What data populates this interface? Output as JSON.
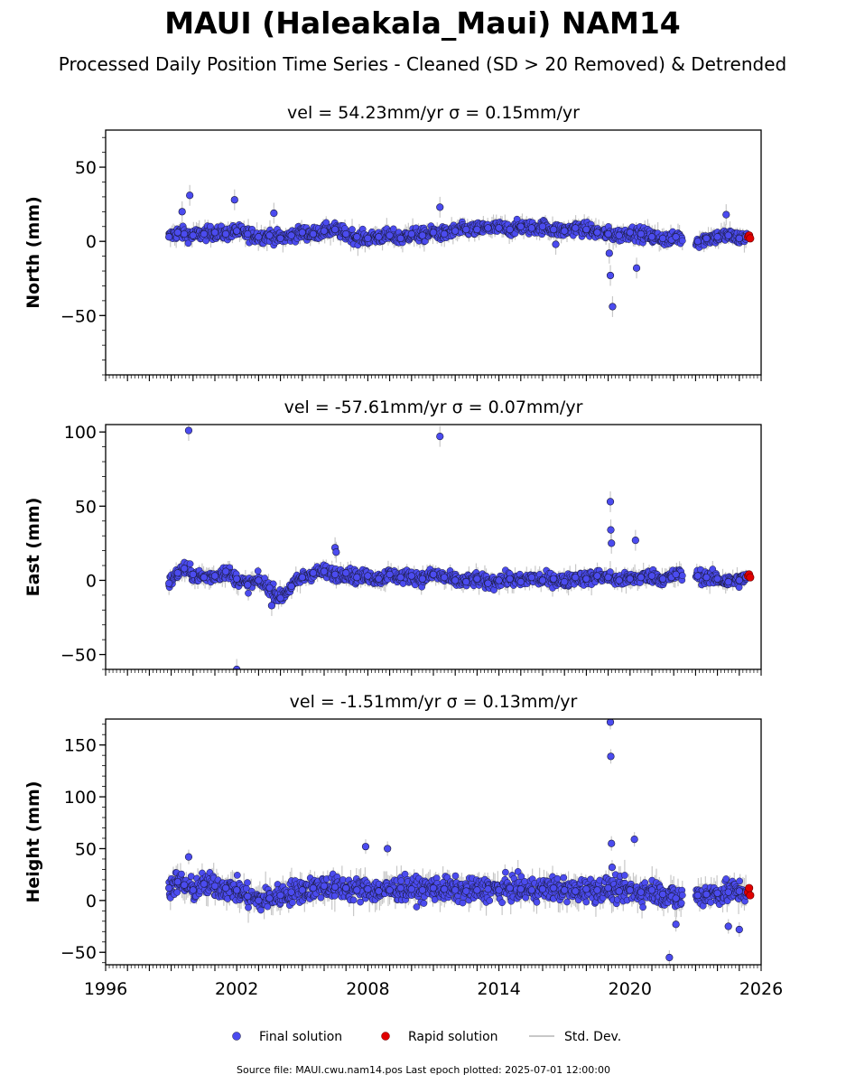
{
  "figure": {
    "title": "MAUI (Haleakala_Maui) NAM14",
    "subtitle": "Processed Daily Position Time Series - Cleaned (SD > 20 Removed) & Detrended",
    "footer": "Source file: MAUI.cwu.nam14.pos  Last epoch plotted: 2025-07-01 12:00:00"
  },
  "legend": {
    "final": "Final solution",
    "rapid": "Rapid solution",
    "std": "Std. Dev."
  },
  "colors": {
    "final": "#4b4bef",
    "rapid": "#e00000",
    "std": "#c8c8c8",
    "edge": "#1a1a3a"
  },
  "chart_data": [
    {
      "type": "scatter",
      "title": "vel = 54.23mm/yr   σ = 0.15mm/yr",
      "xlabel": "",
      "ylabel": "North (mm)",
      "xlim": [
        1996,
        2026
      ],
      "ylim": [
        -90,
        75
      ],
      "yticks": [
        -50,
        0,
        50
      ],
      "xticks": [
        1996,
        2002,
        2008,
        2014,
        2020,
        2026
      ],
      "series": [
        {
          "name": "Final solution",
          "x": [
            1998.9,
            1999.3,
            1999.6,
            2000.0,
            2000.5,
            2001.0,
            2001.5,
            2002.0,
            2002.5,
            2003.0,
            2003.5,
            2004.0,
            2004.5,
            2005.0,
            2005.5,
            2006.0,
            2006.5,
            2007.0,
            2007.5,
            2008.0,
            2008.5,
            2009.0,
            2009.5,
            2010.0,
            2010.5,
            2011.0,
            2011.5,
            2012.0,
            2012.5,
            2013.0,
            2013.5,
            2014.0,
            2014.5,
            2015.0,
            2015.5,
            2016.0,
            2016.5,
            2017.0,
            2017.5,
            2018.0,
            2018.5,
            2019.0,
            2019.5,
            2020.0,
            2020.5,
            2021.0,
            2021.5,
            2021.9,
            2022.1,
            2023.1,
            2023.5,
            2024.0,
            2024.5,
            2025.0,
            2025.3,
            1999.5,
            1999.85,
            2001.9,
            2003.7,
            2011.3,
            2019.05,
            2019.1,
            2019.2,
            2020.3,
            2016.6,
            2024.4
          ],
          "y": [
            3,
            6,
            5,
            4,
            5,
            6,
            5,
            7,
            5,
            3,
            4,
            2,
            4,
            6,
            5,
            7,
            8,
            5,
            3,
            2,
            3,
            4,
            2,
            5,
            4,
            6,
            5,
            7,
            8,
            8,
            9,
            9,
            8,
            10,
            9,
            10,
            8,
            7,
            9,
            8,
            6,
            5,
            4,
            6,
            5,
            3,
            2,
            1,
            3,
            0,
            2,
            3,
            4,
            2,
            3,
            20,
            31,
            28,
            19,
            23,
            -8,
            -23,
            -44,
            -18,
            -2,
            18
          ]
        },
        {
          "name": "Rapid solution",
          "x": [
            2025.4,
            2025.45,
            2025.5
          ],
          "y": [
            3,
            4,
            2
          ]
        }
      ]
    },
    {
      "type": "scatter",
      "title": "vel = -57.61mm/yr   σ = 0.07mm/yr",
      "xlabel": "",
      "ylabel": "East (mm)",
      "xlim": [
        1996,
        2026
      ],
      "ylim": [
        -60,
        105
      ],
      "yticks": [
        -50,
        0,
        50,
        100
      ],
      "xticks": [
        1996,
        2002,
        2008,
        2014,
        2020,
        2026
      ],
      "series": [
        {
          "name": "Final solution",
          "x": [
            1998.9,
            1999.3,
            1999.6,
            2000.0,
            2000.5,
            2001.0,
            2001.5,
            2002.0,
            2002.5,
            2003.0,
            2003.5,
            2004.0,
            2004.5,
            2005.0,
            2005.5,
            2006.0,
            2006.5,
            2007.0,
            2007.5,
            2008.0,
            2008.5,
            2009.0,
            2009.5,
            2010.0,
            2010.5,
            2011.0,
            2011.5,
            2012.0,
            2012.5,
            2013.0,
            2013.5,
            2014.0,
            2014.5,
            2015.0,
            2015.5,
            2016.0,
            2016.5,
            2017.0,
            2017.5,
            2018.0,
            2018.5,
            2019.0,
            2019.5,
            2020.0,
            2020.5,
            2021.0,
            2021.5,
            2021.9,
            2022.1,
            2023.1,
            2023.5,
            2024.0,
            2024.5,
            2025.0,
            2025.3,
            1999.8,
            2011.3,
            2019.1,
            2019.12,
            2019.15,
            2020.25,
            2002.0,
            2006.5,
            2006.55,
            2003.6
          ],
          "y": [
            -2,
            5,
            8,
            4,
            2,
            3,
            6,
            1,
            -3,
            0,
            -5,
            -12,
            -4,
            2,
            5,
            6,
            4,
            5,
            2,
            3,
            1,
            4,
            2,
            3,
            1,
            4,
            2,
            0,
            -1,
            1,
            -2,
            0,
            1,
            -1,
            2,
            0,
            1,
            -1,
            2,
            1,
            3,
            2,
            0,
            1,
            2,
            3,
            1,
            2,
            4,
            3,
            2,
            1,
            -1,
            0,
            2,
            101,
            97,
            53,
            34,
            25,
            27,
            -60,
            22,
            19,
            -17
          ]
        },
        {
          "name": "Rapid solution",
          "x": [
            2025.4,
            2025.45,
            2025.5
          ],
          "y": [
            3,
            4,
            2
          ]
        }
      ]
    },
    {
      "type": "scatter",
      "title": "vel = -1.51mm/yr   σ = 0.13mm/yr",
      "xlabel": "",
      "ylabel": "Height (mm)",
      "xlim": [
        1996,
        2026
      ],
      "ylim": [
        -62,
        175
      ],
      "yticks": [
        -50,
        0,
        50,
        100,
        150
      ],
      "xticks": [
        1996,
        2002,
        2008,
        2014,
        2020,
        2026
      ],
      "series": [
        {
          "name": "Final solution",
          "x": [
            1998.9,
            1999.3,
            1999.6,
            2000.0,
            2000.5,
            2001.0,
            2001.5,
            2002.0,
            2002.5,
            2003.0,
            2003.5,
            2004.0,
            2004.5,
            2005.0,
            2005.5,
            2006.0,
            2006.5,
            2007.0,
            2007.5,
            2008.0,
            2008.5,
            2009.0,
            2009.5,
            2010.0,
            2010.5,
            2011.0,
            2011.5,
            2012.0,
            2012.5,
            2013.0,
            2013.5,
            2014.0,
            2014.5,
            2015.0,
            2015.5,
            2016.0,
            2016.5,
            2017.0,
            2017.5,
            2018.0,
            2018.5,
            2019.0,
            2019.5,
            2020.0,
            2020.5,
            2021.0,
            2021.5,
            2021.9,
            2022.1,
            2023.1,
            2023.5,
            2024.0,
            2024.5,
            2025.0,
            2025.3,
            1999.8,
            2007.9,
            2008.9,
            2019.1,
            2019.12,
            2019.15,
            2019.18,
            2020.2,
            2021.8,
            2022.1,
            2024.5,
            2025.0
          ],
          "y": [
            12,
            18,
            15,
            10,
            16,
            14,
            12,
            10,
            4,
            0,
            2,
            5,
            8,
            10,
            12,
            14,
            13,
            12,
            10,
            11,
            9,
            10,
            12,
            11,
            10,
            12,
            11,
            10,
            9,
            10,
            11,
            10,
            12,
            11,
            10,
            11,
            12,
            10,
            9,
            11,
            10,
            12,
            9,
            10,
            8,
            10,
            6,
            4,
            2,
            5,
            6,
            7,
            8,
            9,
            8,
            42,
            52,
            50,
            172,
            139,
            55,
            32,
            59,
            -55,
            -23,
            -25,
            -28
          ]
        },
        {
          "name": "Rapid solution",
          "x": [
            2025.4,
            2025.45,
            2025.5
          ],
          "y": [
            8,
            12,
            5
          ]
        }
      ]
    }
  ]
}
